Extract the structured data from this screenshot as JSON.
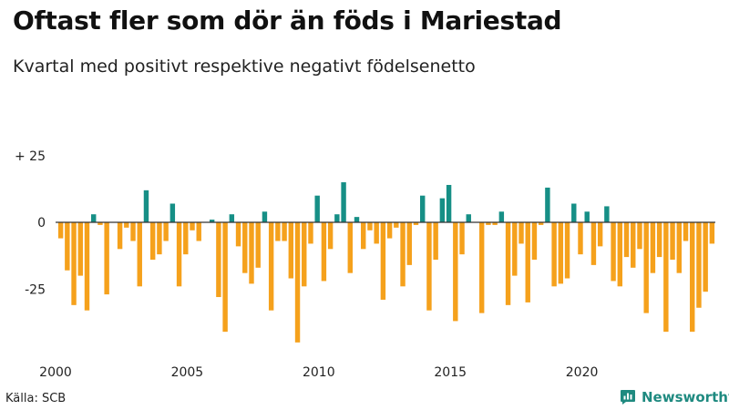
{
  "header": {
    "title": "Oftast fler som dör än föds i Mariestad",
    "subtitle": "Kvartal med positivt respektive negativt födelsenetto"
  },
  "footer": {
    "source": "Källa: SCB",
    "brand": "Newsworthy"
  },
  "colors": {
    "positive": "#168f86",
    "negative": "#f5a11c",
    "axis": "#333333",
    "brand": "#1f8a80"
  },
  "chart_data": {
    "type": "bar",
    "title": "Oftast fler som dör än föds i Mariestad",
    "subtitle": "Kvartal med positivt respektive negativt födelsenetto",
    "xlabel": "",
    "ylabel": "",
    "ylim": [
      -46,
      25
    ],
    "y_ticks": [
      {
        "value": 25,
        "label": "+ 25"
      },
      {
        "value": 0,
        "label": "0"
      },
      {
        "value": -25,
        "label": "-25"
      }
    ],
    "x_ticks": [
      {
        "index": 0,
        "label": "2000"
      },
      {
        "index": 20,
        "label": "2005"
      },
      {
        "index": 40,
        "label": "2010"
      },
      {
        "index": 60,
        "label": "2015"
      },
      {
        "index": 80,
        "label": "2020"
      }
    ],
    "start": "2000 Q1",
    "end": "2024 Q4",
    "categories": [
      "2000 Q1",
      "2000 Q2",
      "2000 Q3",
      "2000 Q4",
      "2001 Q1",
      "2001 Q2",
      "2001 Q3",
      "2001 Q4",
      "2002 Q1",
      "2002 Q2",
      "2002 Q3",
      "2002 Q4",
      "2003 Q1",
      "2003 Q2",
      "2003 Q3",
      "2003 Q4",
      "2004 Q1",
      "2004 Q2",
      "2004 Q3",
      "2004 Q4",
      "2005 Q1",
      "2005 Q2",
      "2005 Q3",
      "2005 Q4",
      "2006 Q1",
      "2006 Q2",
      "2006 Q3",
      "2006 Q4",
      "2007 Q1",
      "2007 Q2",
      "2007 Q3",
      "2007 Q4",
      "2008 Q1",
      "2008 Q2",
      "2008 Q3",
      "2008 Q4",
      "2009 Q1",
      "2009 Q2",
      "2009 Q3",
      "2009 Q4",
      "2010 Q1",
      "2010 Q2",
      "2010 Q3",
      "2010 Q4",
      "2011 Q1",
      "2011 Q2",
      "2011 Q3",
      "2011 Q4",
      "2012 Q1",
      "2012 Q2",
      "2012 Q3",
      "2012 Q4",
      "2013 Q1",
      "2013 Q2",
      "2013 Q3",
      "2013 Q4",
      "2014 Q1",
      "2014 Q2",
      "2014 Q3",
      "2014 Q4",
      "2015 Q1",
      "2015 Q2",
      "2015 Q3",
      "2015 Q4",
      "2016 Q1",
      "2016 Q2",
      "2016 Q3",
      "2016 Q4",
      "2017 Q1",
      "2017 Q2",
      "2017 Q3",
      "2017 Q4",
      "2018 Q1",
      "2018 Q2",
      "2018 Q3",
      "2018 Q4",
      "2019 Q1",
      "2019 Q2",
      "2019 Q3",
      "2019 Q4",
      "2020 Q1",
      "2020 Q2",
      "2020 Q3",
      "2020 Q4",
      "2021 Q1",
      "2021 Q2",
      "2021 Q3",
      "2021 Q4",
      "2022 Q1",
      "2022 Q2",
      "2022 Q3",
      "2022 Q4",
      "2023 Q1",
      "2023 Q2",
      "2023 Q3",
      "2023 Q4",
      "2024 Q1",
      "2024 Q2",
      "2024 Q3",
      "2024 Q4"
    ],
    "values": [
      -6,
      -18,
      -31,
      -20,
      -33,
      3,
      -1,
      -27,
      0,
      -10,
      -2,
      -7,
      -24,
      12,
      -14,
      -12,
      -7,
      7,
      -24,
      -12,
      -3,
      -7,
      0,
      1,
      -28,
      -41,
      3,
      -9,
      -19,
      -23,
      -17,
      4,
      -33,
      -7,
      -7,
      -21,
      -45,
      -24,
      -8,
      10,
      -22,
      -10,
      3,
      15,
      -19,
      2,
      -10,
      -3,
      -8,
      -29,
      -6,
      -2,
      -24,
      -16,
      -1,
      10,
      -33,
      -14,
      9,
      14,
      -37,
      -12,
      3,
      0,
      -34,
      -1,
      -1,
      4,
      -31,
      -20,
      -8,
      -30,
      -14,
      -1,
      13,
      -24,
      -23,
      -21,
      7,
      -12,
      4,
      -16,
      -9,
      6,
      -22,
      -24,
      -13,
      -17,
      -10,
      -34,
      -19,
      -13,
      -41,
      -14,
      -19,
      -7,
      -41,
      -32,
      -26,
      -8
    ]
  }
}
